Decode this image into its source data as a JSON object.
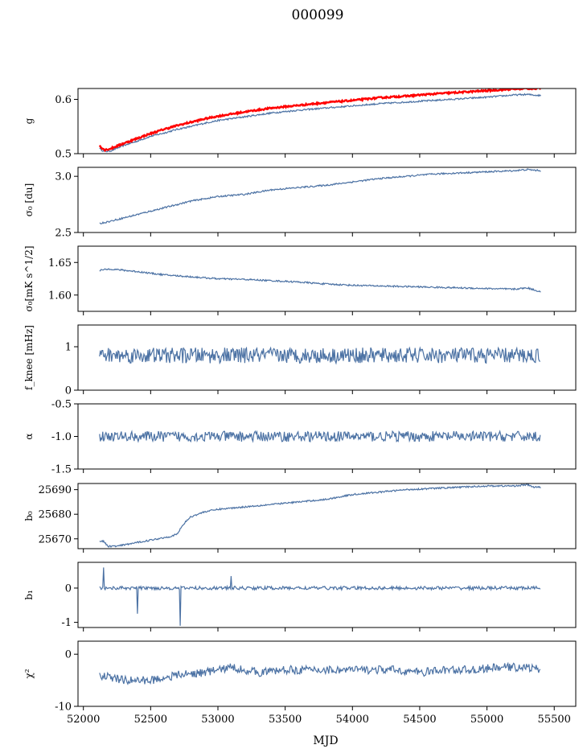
{
  "figure": {
    "title": "000099",
    "xlabel": "MJD",
    "xlim": [
      51960,
      55660
    ],
    "xticks": [
      52000,
      52500,
      53000,
      53500,
      54000,
      54500,
      55000,
      55500
    ],
    "line_color": "#4c72a4",
    "highlight_color": "#ff0000"
  },
  "chart_data": [
    {
      "type": "line",
      "ylabel": "g",
      "ylim": [
        0.5,
        0.62
      ],
      "yticks": [
        0.5,
        0.6
      ],
      "series": [
        {
          "name": "",
          "color": "#4c72a4",
          "x": [
            52120,
            52140,
            52160,
            52200,
            52300,
            52400,
            52500,
            52600,
            52700,
            52800,
            52900,
            53000,
            53200,
            53400,
            53600,
            53800,
            54000,
            54200,
            54400,
            54600,
            54800,
            55000,
            55200,
            55300,
            55400
          ],
          "y": [
            0.51,
            0.506,
            0.504,
            0.505,
            0.515,
            0.523,
            0.532,
            0.538,
            0.545,
            0.55,
            0.556,
            0.561,
            0.568,
            0.575,
            0.58,
            0.584,
            0.588,
            0.592,
            0.595,
            0.598,
            0.601,
            0.604,
            0.608,
            0.609,
            0.607
          ]
        },
        {
          "name": "",
          "color": "#ff0000",
          "x": [
            52120,
            52140,
            52160,
            52200,
            52300,
            52400,
            52500,
            52600,
            52700,
            52800,
            52900,
            53000,
            53200,
            53400,
            53600,
            53800,
            54000,
            54200,
            54400,
            54600,
            54800,
            55000,
            55200,
            55300,
            55400
          ],
          "y": [
            0.515,
            0.51,
            0.507,
            0.509,
            0.519,
            0.528,
            0.537,
            0.545,
            0.552,
            0.558,
            0.564,
            0.569,
            0.577,
            0.584,
            0.589,
            0.594,
            0.598,
            0.603,
            0.606,
            0.61,
            0.613,
            0.616,
            0.619,
            0.62,
            0.62
          ]
        }
      ]
    },
    {
      "type": "line",
      "ylabel": "σ₀ [du]",
      "ylim": [
        2.5,
        3.08
      ],
      "yticks": [
        2.5,
        3.0
      ],
      "series": [
        {
          "name": "",
          "color": "#4c72a4",
          "x": [
            52120,
            52200,
            52400,
            52600,
            52800,
            53000,
            53200,
            53400,
            53600,
            53800,
            54000,
            54200,
            54400,
            54600,
            54800,
            55000,
            55200,
            55300,
            55400
          ],
          "y": [
            2.58,
            2.6,
            2.66,
            2.72,
            2.78,
            2.82,
            2.84,
            2.88,
            2.9,
            2.92,
            2.95,
            2.98,
            3.0,
            3.02,
            3.03,
            3.04,
            3.05,
            3.06,
            3.05
          ]
        }
      ]
    },
    {
      "type": "line",
      "ylabel": "σ₀[mK s^1/2]",
      "ylim": [
        1.575,
        1.675
      ],
      "yticks": [
        1.6,
        1.65
      ],
      "series": [
        {
          "name": "",
          "color": "#4c72a4",
          "x": [
            52120,
            52200,
            52400,
            52600,
            52800,
            53000,
            53200,
            53400,
            53600,
            53800,
            54000,
            54200,
            54400,
            54600,
            54800,
            55000,
            55200,
            55300,
            55400
          ],
          "y": [
            1.638,
            1.64,
            1.636,
            1.631,
            1.628,
            1.625,
            1.624,
            1.622,
            1.62,
            1.617,
            1.615,
            1.614,
            1.613,
            1.612,
            1.611,
            1.61,
            1.609,
            1.611,
            1.605
          ]
        }
      ]
    },
    {
      "type": "line",
      "ylabel": "f_knee [mHz]",
      "ylim": [
        0,
        1.5
      ],
      "yticks": [
        0,
        1
      ],
      "series": [
        {
          "name": "",
          "color": "#4c72a4",
          "x": [
            52120,
            55400
          ],
          "y": [
            0.8,
            0.8
          ],
          "noise": 0.18
        }
      ]
    },
    {
      "type": "line",
      "ylabel": "α",
      "ylim": [
        -1.5,
        -0.5
      ],
      "yticks": [
        -1.5,
        -1.0,
        -0.5
      ],
      "series": [
        {
          "name": "",
          "color": "#4c72a4",
          "x": [
            52120,
            55400
          ],
          "y": [
            -1.0,
            -1.0
          ],
          "noise": 0.08
        }
      ]
    },
    {
      "type": "line",
      "ylabel": "b₀",
      "ylim": [
        25666,
        25692.5
      ],
      "yticks": [
        25670,
        25680,
        25690
      ],
      "series": [
        {
          "name": "",
          "color": "#4c72a4",
          "x": [
            52120,
            52150,
            52180,
            52250,
            52350,
            52450,
            52550,
            52650,
            52700,
            52720,
            52760,
            52800,
            52900,
            53000,
            53200,
            53400,
            53600,
            53800,
            54000,
            54200,
            54400,
            54600,
            54800,
            55000,
            55200,
            55300,
            55350,
            55400
          ],
          "y": [
            25669,
            25669,
            25667,
            25667,
            25668,
            25669,
            25670,
            25671,
            25672,
            25674,
            25677,
            25679,
            25681,
            25682,
            25683,
            25684,
            25685,
            25686,
            25688,
            25689,
            25690,
            25690.5,
            25691,
            25691.5,
            25691.5,
            25692,
            25691,
            25691
          ]
        }
      ]
    },
    {
      "type": "line",
      "ylabel": "b₁",
      "ylim": [
        -1.15,
        0.75
      ],
      "yticks": [
        -1,
        0
      ],
      "series": [
        {
          "name": "",
          "color": "#4c72a4",
          "x": [
            52120,
            55400
          ],
          "y": [
            0.0,
            0.0
          ],
          "noise": 0.05,
          "spikes": [
            [
              52150,
              0.6
            ],
            [
              52400,
              -0.75
            ],
            [
              52720,
              -1.1
            ],
            [
              53100,
              0.35
            ]
          ]
        }
      ]
    },
    {
      "type": "line",
      "ylabel": "χ²",
      "ylim": [
        -10,
        2.5
      ],
      "yticks": [
        -10,
        0
      ],
      "series": [
        {
          "name": "",
          "color": "#4c72a4",
          "x": [
            52120,
            52300,
            52500,
            52700,
            52900,
            53100,
            53300,
            53500,
            53700,
            53900,
            54100,
            54300,
            54500,
            54700,
            54900,
            55100,
            55300,
            55400
          ],
          "y": [
            -4,
            -5,
            -5,
            -4,
            -3.5,
            -2.5,
            -3.5,
            -3,
            -3,
            -3,
            -3,
            -3,
            -3.5,
            -3,
            -3,
            -2.5,
            -2.5,
            -3
          ],
          "noise": 0.8
        }
      ]
    }
  ]
}
